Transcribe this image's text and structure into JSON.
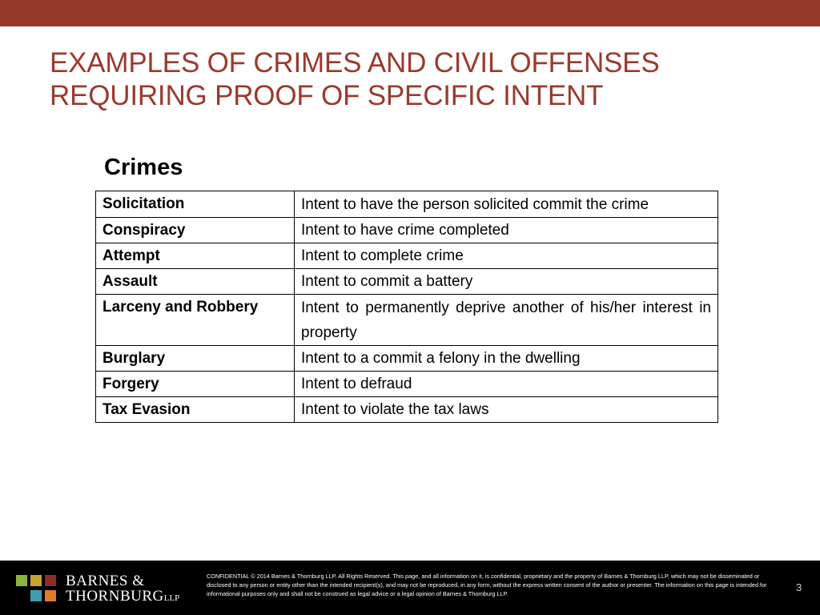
{
  "title": {
    "line1": "EXAMPLES OF CRIMES AND CIVIL OFFENSES",
    "line2": "REQUIRING PROOF OF SPECIFIC INTENT"
  },
  "section_heading": "Crimes",
  "table": {
    "rows": [
      {
        "name": "Solicitation",
        "intent": "Intent to have the person solicited commit the crime"
      },
      {
        "name": "Conspiracy",
        "intent": "Intent to have crime completed"
      },
      {
        "name": "Attempt",
        "intent": "Intent to complete crime"
      },
      {
        "name": "Assault",
        "intent": "Intent to commit a battery"
      },
      {
        "name": "Larceny and Robbery",
        "intent": "Intent to permanently deprive another of his/her interest in property"
      },
      {
        "name": "Burglary",
        "intent": "Intent to a commit a felony in the dwelling"
      },
      {
        "name": "Forgery",
        "intent": "Intent to defraud"
      },
      {
        "name": "Tax Evasion",
        "intent": "Intent to violate the tax laws"
      }
    ]
  },
  "footer": {
    "logo": {
      "line1": "BARNES &",
      "line2": "THORNBURG",
      "suffix": "LLP"
    },
    "confidential": "CONFIDENTIAL © 2014 Barnes & Thornburg LLP. All Rights Reserved. This page, and all information on it, is confidential, proprietary and the property of Barnes & Thornburg LLP, which may not be disseminated or disclosed to any person or entity other than the intended recipient(s), and may not be reproduced, in any form, without the express written consent of the author or presenter. The information on this page is intended for informational purposes only and shall not be construed as legal advice or a legal opinion of Barnes & Thornburg LLP.",
    "page_number": "3"
  },
  "colors": {
    "brand_red": "#953729",
    "title_red": "#9b3a2c",
    "logo_green": "#8cb43c",
    "logo_olive": "#c4a531",
    "logo_maroon": "#8e2b2b",
    "logo_teal": "#3f9fb0",
    "logo_orange": "#e07b2a"
  }
}
